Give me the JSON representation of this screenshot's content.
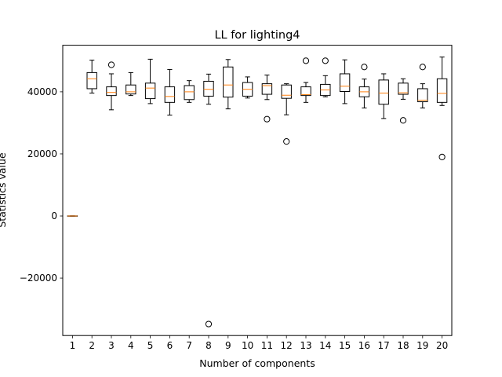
{
  "chart_data": {
    "type": "box",
    "title": "LL for lighting4",
    "xlabel": "Number of components",
    "ylabel": "Statistics value",
    "ylim": [
      -38500,
      55000
    ],
    "yticks": [
      -20000,
      0,
      20000,
      40000
    ],
    "ytick_labels": [
      "−20000",
      "0",
      "20000",
      "40000"
    ],
    "grid": false,
    "colors": {
      "box": "#000000",
      "median": "#ff7f0e",
      "background": "#ffffff"
    },
    "boxes": [
      {
        "label": "1",
        "whislo": -50,
        "q1": -50,
        "med": 0,
        "q3": 50,
        "whishi": 50,
        "fliers": []
      },
      {
        "label": "2",
        "whislo": 39600,
        "q1": 41000,
        "med": 44200,
        "q3": 46200,
        "whishi": 50200,
        "fliers": []
      },
      {
        "label": "3",
        "whislo": 34200,
        "q1": 38800,
        "med": 39800,
        "q3": 41600,
        "whishi": 45800,
        "fliers": [
          48700
        ]
      },
      {
        "label": "4",
        "whislo": 38800,
        "q1": 39300,
        "med": 40000,
        "q3": 42200,
        "whishi": 46200,
        "fliers": []
      },
      {
        "label": "5",
        "whislo": 36200,
        "q1": 37800,
        "med": 41200,
        "q3": 42800,
        "whishi": 50500,
        "fliers": []
      },
      {
        "label": "6",
        "whislo": 32500,
        "q1": 36600,
        "med": 38500,
        "q3": 41600,
        "whishi": 47200,
        "fliers": []
      },
      {
        "label": "7",
        "whislo": 36600,
        "q1": 37500,
        "med": 40000,
        "q3": 42000,
        "whishi": 43600,
        "fliers": []
      },
      {
        "label": "8",
        "whislo": 36000,
        "q1": 38600,
        "med": 40800,
        "q3": 43400,
        "whishi": 45700,
        "fliers": [
          -34800
        ]
      },
      {
        "label": "9",
        "whislo": 34500,
        "q1": 38300,
        "med": 42200,
        "q3": 48000,
        "whishi": 50400,
        "fliers": []
      },
      {
        "label": "10",
        "whislo": 38000,
        "q1": 38600,
        "med": 40800,
        "q3": 43000,
        "whishi": 44800,
        "fliers": []
      },
      {
        "label": "11",
        "whislo": 37500,
        "q1": 39200,
        "med": 42000,
        "q3": 42600,
        "whishi": 45400,
        "fliers": [
          31200
        ]
      },
      {
        "label": "12",
        "whislo": 32600,
        "q1": 37900,
        "med": 38900,
        "q3": 42200,
        "whishi": 42600,
        "fliers": [
          24000
        ]
      },
      {
        "label": "13",
        "whislo": 36600,
        "q1": 38800,
        "med": 39100,
        "q3": 41600,
        "whishi": 43000,
        "fliers": [
          50000
        ]
      },
      {
        "label": "14",
        "whislo": 38400,
        "q1": 38800,
        "med": 40600,
        "q3": 42400,
        "whishi": 45200,
        "fliers": [
          50000
        ]
      },
      {
        "label": "15",
        "whislo": 36200,
        "q1": 40100,
        "med": 41800,
        "q3": 45800,
        "whishi": 50300,
        "fliers": []
      },
      {
        "label": "16",
        "whislo": 34800,
        "q1": 38400,
        "med": 40000,
        "q3": 41600,
        "whishi": 44100,
        "fliers": [
          48000
        ]
      },
      {
        "label": "17",
        "whislo": 31400,
        "q1": 36000,
        "med": 39600,
        "q3": 43800,
        "whishi": 45800,
        "fliers": []
      },
      {
        "label": "18",
        "whislo": 37600,
        "q1": 39200,
        "med": 39700,
        "q3": 42800,
        "whishi": 44200,
        "fliers": [
          30800
        ]
      },
      {
        "label": "19",
        "whislo": 34800,
        "q1": 36800,
        "med": 37300,
        "q3": 41000,
        "whishi": 42600,
        "fliers": [
          48000
        ]
      },
      {
        "label": "20",
        "whislo": 35600,
        "q1": 36600,
        "med": 39500,
        "q3": 44200,
        "whishi": 51200,
        "fliers": [
          19000
        ]
      }
    ]
  }
}
